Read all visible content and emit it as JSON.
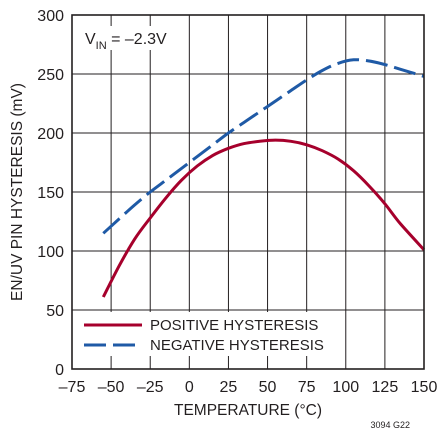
{
  "chart_data": {
    "type": "line",
    "xlabel": "TEMPERATURE (°C)",
    "ylabel": "EN/UV PIN HYSTERESIS (mV)",
    "xlim": [
      -75,
      150
    ],
    "ylim": [
      0,
      300
    ],
    "xticks": [
      -75,
      -50,
      -25,
      0,
      25,
      50,
      75,
      100,
      125,
      150
    ],
    "yticks": [
      0,
      50,
      100,
      150,
      200,
      250,
      300
    ],
    "x_tick_labels": [
      "–75",
      "–50",
      "–25",
      "0",
      "25",
      "50",
      "75",
      "100",
      "125",
      "150"
    ],
    "y_tick_labels": [
      "0",
      "50",
      "100",
      "150",
      "200",
      "250",
      "300"
    ],
    "grid": true,
    "legend_position": "bottom-left",
    "annotation": {
      "main": "V",
      "sub": "IN",
      "rest": " = –2.3V"
    },
    "figure_id": "3094 G22",
    "series": [
      {
        "name": "POSITIVE HYSTERESIS",
        "color": "#a6002c",
        "style": "solid",
        "x": [
          -55,
          -45,
          -35,
          -25,
          -15,
          -5,
          5,
          15,
          25,
          35,
          45,
          55,
          65,
          75,
          85,
          95,
          105,
          115,
          125,
          135,
          150
        ],
        "y": [
          61,
          87,
          110,
          128,
          145,
          160,
          172,
          181,
          187,
          191,
          193,
          194,
          193,
          190,
          185,
          178,
          168,
          155,
          140,
          123,
          101
        ]
      },
      {
        "name": "NEGATIVE HYSTERESIS",
        "color": "#1f5aa6",
        "style": "dashed",
        "x": [
          -55,
          -45,
          -35,
          -25,
          -15,
          -5,
          5,
          15,
          25,
          35,
          45,
          55,
          65,
          75,
          85,
          95,
          105,
          115,
          125,
          135,
          150
        ],
        "y": [
          115,
          127,
          139,
          150,
          160,
          170,
          180,
          190,
          200,
          209,
          218,
          227,
          236,
          245,
          253,
          259,
          262,
          261,
          258,
          254,
          248
        ]
      }
    ]
  }
}
